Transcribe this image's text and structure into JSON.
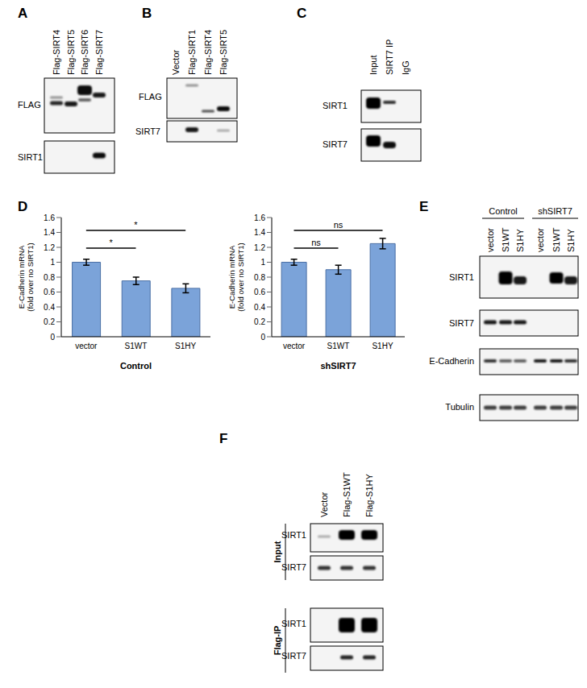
{
  "panels": {
    "A": {
      "label": "A",
      "lanes": [
        "Flag-SIRT4",
        "Flag-SIRT5",
        "Flag-SIRT6",
        "Flag-SIRT7"
      ],
      "rows": [
        "FLAG",
        "SIRT1"
      ]
    },
    "B": {
      "label": "B",
      "lanes": [
        "Vector",
        "Flag-SIRT1",
        "Flag-SIRT4",
        "Flag-SIRT5"
      ],
      "rows": [
        "FLAG",
        "SIRT7"
      ]
    },
    "C": {
      "label": "C",
      "lanes": [
        "Input",
        "SIRT7 IP",
        "IgG"
      ],
      "rows": [
        "SIRT1",
        "SIRT7"
      ]
    },
    "D": {
      "label": "D"
    },
    "E": {
      "label": "E",
      "groups": [
        {
          "name": "Control",
          "lanes": [
            "vector",
            "S1WT",
            "S1HY"
          ]
        },
        {
          "name": "shSIRT7",
          "lanes": [
            "vector",
            "S1WT",
            "S1HY"
          ]
        }
      ],
      "rows": [
        "SIRT1",
        "SIRT7",
        "E-Cadherin",
        "Tubulin"
      ]
    },
    "F": {
      "label": "F",
      "lanes": [
        "Vector",
        "Flag-S1WT",
        "Flag-S1HY"
      ],
      "sections": [
        {
          "name": "Input",
          "rows": [
            "SIRT1",
            "SIRT7"
          ]
        },
        {
          "name": "Flag-IP",
          "rows": [
            "SIRT1",
            "SIRT7"
          ]
        }
      ]
    }
  },
  "chart_data": [
    {
      "type": "bar",
      "categories": [
        "vector",
        "S1WT",
        "S1HY"
      ],
      "values": [
        1,
        0.75,
        0.65
      ],
      "errors": [
        0.04,
        0.05,
        0.06
      ],
      "color": "#7ba3d9",
      "ylim": [
        0,
        1.6
      ],
      "yticks": [
        0,
        0.2,
        0.4,
        0.6,
        0.8,
        1,
        1.2,
        1.4,
        1.6
      ],
      "ylabel": "E-Cadherin mRNA (fold over no SIRT1)",
      "xlabel": "Control",
      "annotations": [
        {
          "text": "*",
          "from": "vector",
          "to": "S1WT"
        },
        {
          "text": "*",
          "from": "vector",
          "to": "S1HY"
        }
      ]
    },
    {
      "type": "bar",
      "categories": [
        "vector",
        "S1WT",
        "S1HY"
      ],
      "values": [
        1,
        0.9,
        1.25
      ],
      "errors": [
        0.04,
        0.06,
        0.07
      ],
      "color": "#7ba3d9",
      "ylim": [
        0,
        1.6
      ],
      "yticks": [
        0,
        0.2,
        0.4,
        0.6,
        0.8,
        1,
        1.2,
        1.4,
        1.6
      ],
      "ylabel": "E-Cadherin mRNA (fold over no SIRT1)",
      "xlabel": "shSIRT7",
      "annotations": [
        {
          "text": "ns",
          "from": "vector",
          "to": "S1WT"
        },
        {
          "text": "ns",
          "from": "vector",
          "to": "S1HY"
        }
      ]
    }
  ]
}
